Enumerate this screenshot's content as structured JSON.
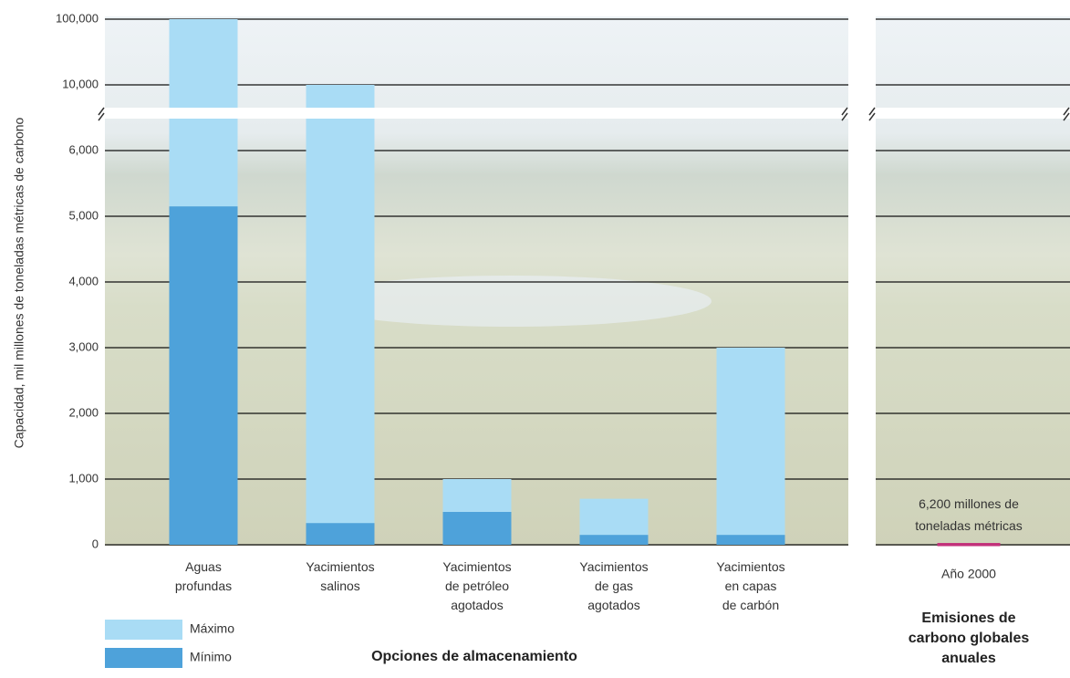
{
  "chart_data": {
    "type": "bar",
    "ylabel": "Capacidad, mil millones de toneladas métricas de carbono",
    "xlabel": "Opciones de almacenamiento",
    "categories": [
      "Aguas\nprofundas",
      "Yacimientos\nsalinos",
      "Yacimientos\nde petróleo\nagotados",
      "Yacimientos\nde gas\nagotados",
      "Yacimientos\nen capas\nde carbón"
    ],
    "series": [
      {
        "name": "Máximo",
        "color": "#a9dcf5",
        "values": [
          100000,
          10000,
          1000,
          700,
          3000
        ]
      },
      {
        "name": "Mínimo",
        "color": "#4ea2da",
        "values": [
          5150,
          330,
          500,
          150,
          150
        ]
      }
    ],
    "ylim": [
      0,
      100000
    ],
    "ybreak": [
      6000,
      10000
    ],
    "upper_scale": "log",
    "yticks": [
      0,
      {
        "value": 1000,
        "label": "1,000"
      },
      {
        "value": 2000,
        "label": "2,000"
      },
      {
        "value": 3000,
        "label": "3,000"
      },
      {
        "value": 4000,
        "label": "4,000"
      },
      {
        "value": 5000,
        "label": "5,000"
      },
      {
        "value": 6000,
        "label": "6,000"
      },
      {
        "value": 10000,
        "label": "10,000"
      },
      {
        "value": 100000,
        "label": "100,000"
      }
    ],
    "grid": true,
    "emissions": {
      "title": "Emisiones de\ncarbono globales\nanuales",
      "category": "Año 2000",
      "value": 6.2,
      "value_label": "6,200 millones de\ntoneladas métricas",
      "color": "#c2307a"
    }
  }
}
